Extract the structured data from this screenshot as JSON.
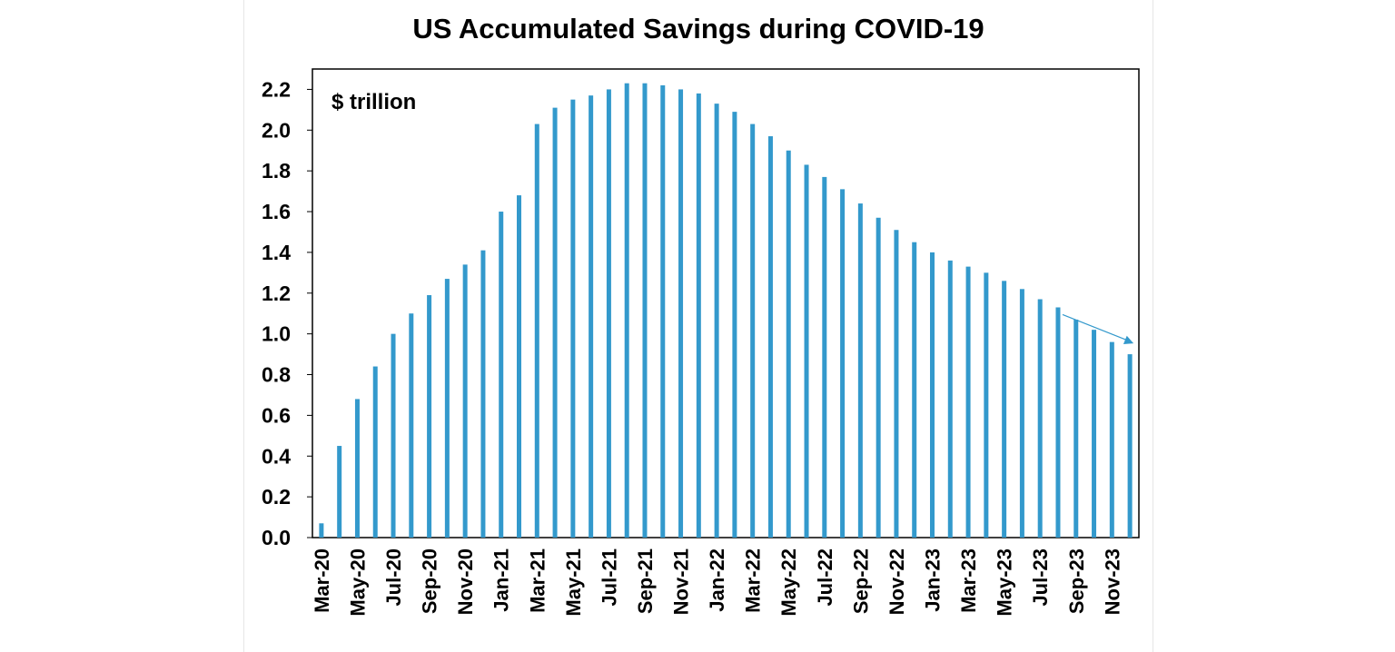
{
  "chart_data": {
    "type": "bar",
    "title": "US Accumulated Savings during COVID-19",
    "unit_label": "$ trillion",
    "xlabel": "",
    "ylabel": "",
    "ylim": [
      0,
      2.3
    ],
    "y_ticks": [
      "0.0",
      "0.2",
      "0.4",
      "0.6",
      "0.8",
      "1.0",
      "1.2",
      "1.4",
      "1.6",
      "1.8",
      "2.0",
      "2.2"
    ],
    "x_tick_labels": [
      "Mar-20",
      "May-20",
      "Jul-20",
      "Sep-20",
      "Nov-20",
      "Jan-21",
      "Mar-21",
      "May-21",
      "Jul-21",
      "Sep-21",
      "Nov-21",
      "Jan-22",
      "Mar-22",
      "May-22",
      "Jul-22",
      "Sep-22",
      "Nov-22",
      "Jan-23",
      "Mar-23",
      "May-23",
      "Jul-23",
      "Sep-23",
      "Nov-23"
    ],
    "categories": [
      "Mar-20",
      "Apr-20",
      "May-20",
      "Jun-20",
      "Jul-20",
      "Aug-20",
      "Sep-20",
      "Oct-20",
      "Nov-20",
      "Dec-20",
      "Jan-21",
      "Feb-21",
      "Mar-21",
      "Apr-21",
      "May-21",
      "Jun-21",
      "Jul-21",
      "Aug-21",
      "Sep-21",
      "Oct-21",
      "Nov-21",
      "Dec-21",
      "Jan-22",
      "Feb-22",
      "Mar-22",
      "Apr-22",
      "May-22",
      "Jun-22",
      "Jul-22",
      "Aug-22",
      "Sep-22",
      "Oct-22",
      "Nov-22",
      "Dec-22",
      "Jan-23",
      "Feb-23",
      "Mar-23",
      "Apr-23",
      "May-23",
      "Jun-23",
      "Jul-23",
      "Aug-23",
      "Sep-23",
      "Oct-23",
      "Nov-23",
      "Dec-23"
    ],
    "values": [
      0.07,
      0.45,
      0.68,
      0.84,
      1.0,
      1.1,
      1.19,
      1.27,
      1.34,
      1.41,
      1.6,
      1.68,
      2.03,
      2.11,
      2.15,
      2.17,
      2.2,
      2.23,
      2.23,
      2.22,
      2.2,
      2.18,
      2.13,
      2.09,
      2.03,
      1.97,
      1.9,
      1.83,
      1.77,
      1.71,
      1.64,
      1.57,
      1.51,
      1.45,
      1.4,
      1.36,
      1.33,
      1.3,
      1.26,
      1.22,
      1.17,
      1.13,
      1.07,
      1.02,
      0.96,
      0.9
    ],
    "bar_color": "#3399cc",
    "annotation": "downward trend arrow over Aug-23 to Dec-23",
    "grid": false,
    "legend": "none"
  }
}
